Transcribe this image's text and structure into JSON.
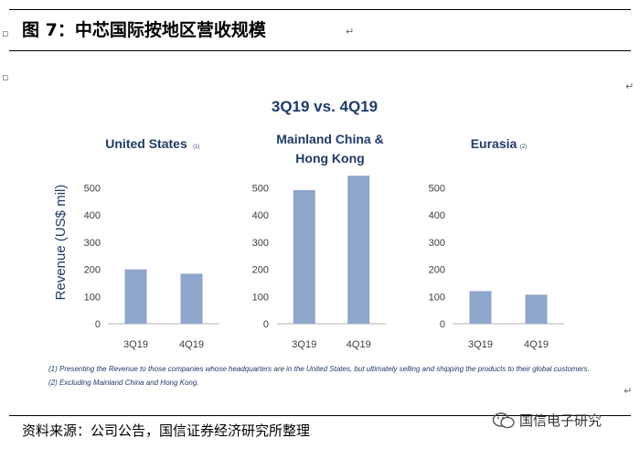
{
  "figure": {
    "title": "图 7：中芯国际按地区营收规模",
    "source": "资料来源：公司公告，国信证券经济研究所整理",
    "watermark": "国信电子研究"
  },
  "colors": {
    "bar": "#8ea6cc",
    "heading": "#1f3b69",
    "axis_text": "#3d3d3d",
    "baseline": "#b0b0b0"
  },
  "chart_data": {
    "type": "bar",
    "title": "3Q19 vs. 4Q19",
    "ylabel": "Revenue (US$ mil)",
    "categories": [
      "3Q19",
      "4Q19"
    ],
    "panels": [
      {
        "name": "United States",
        "note": "(1)",
        "values": [
          200,
          184
        ],
        "yticks": [
          0,
          100,
          200,
          300,
          400,
          500
        ],
        "ylim": [
          0,
          560
        ]
      },
      {
        "name": "Mainland China & Hong Kong",
        "name_lines": [
          "Mainland China &",
          "Hong Kong"
        ],
        "note": "",
        "values": [
          492,
          545
        ],
        "yticks": [
          0,
          100,
          200,
          300,
          400,
          500
        ],
        "ylim": [
          0,
          560
        ]
      },
      {
        "name": "Eurasia",
        "note": "(2)",
        "values": [
          120,
          107
        ],
        "yticks": [
          0,
          100,
          200,
          300,
          400,
          500
        ],
        "ylim": [
          0,
          560
        ]
      }
    ],
    "footnotes": [
      "(1) Presenting the Revenue to those companies whose headquarters are in the United States, but ultimately selling and shipping the products to their global customers.",
      "(2) Excluding Mainland China and Hong Kong."
    ]
  }
}
